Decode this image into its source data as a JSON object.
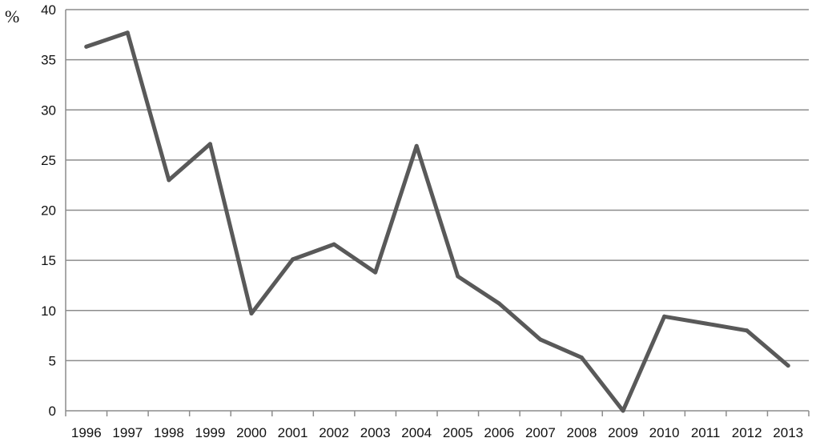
{
  "chart_data": {
    "type": "line",
    "title": "",
    "xlabel": "",
    "ylabel": "%",
    "x": [
      "1996",
      "1997",
      "1998",
      "1999",
      "2000",
      "2001",
      "2002",
      "2003",
      "2004",
      "2005",
      "2006",
      "2007",
      "2008",
      "2009",
      "2010",
      "2011",
      "2012",
      "2013"
    ],
    "series": [
      {
        "values": [
          36.3,
          37.7,
          23.0,
          26.6,
          9.7,
          15.1,
          16.6,
          13.8,
          26.4,
          13.4,
          10.7,
          7.1,
          5.3,
          0.0,
          9.4,
          8.7,
          8.0,
          4.5
        ]
      }
    ],
    "ylim": [
      0,
      40
    ],
    "yticks": [
      0,
      5,
      10,
      15,
      20,
      25,
      30,
      35,
      40
    ],
    "grid": true,
    "legend": "none",
    "colors": {
      "line": "#595959",
      "grid": "#8c8c8c",
      "axis": "#8c8c8c"
    }
  }
}
